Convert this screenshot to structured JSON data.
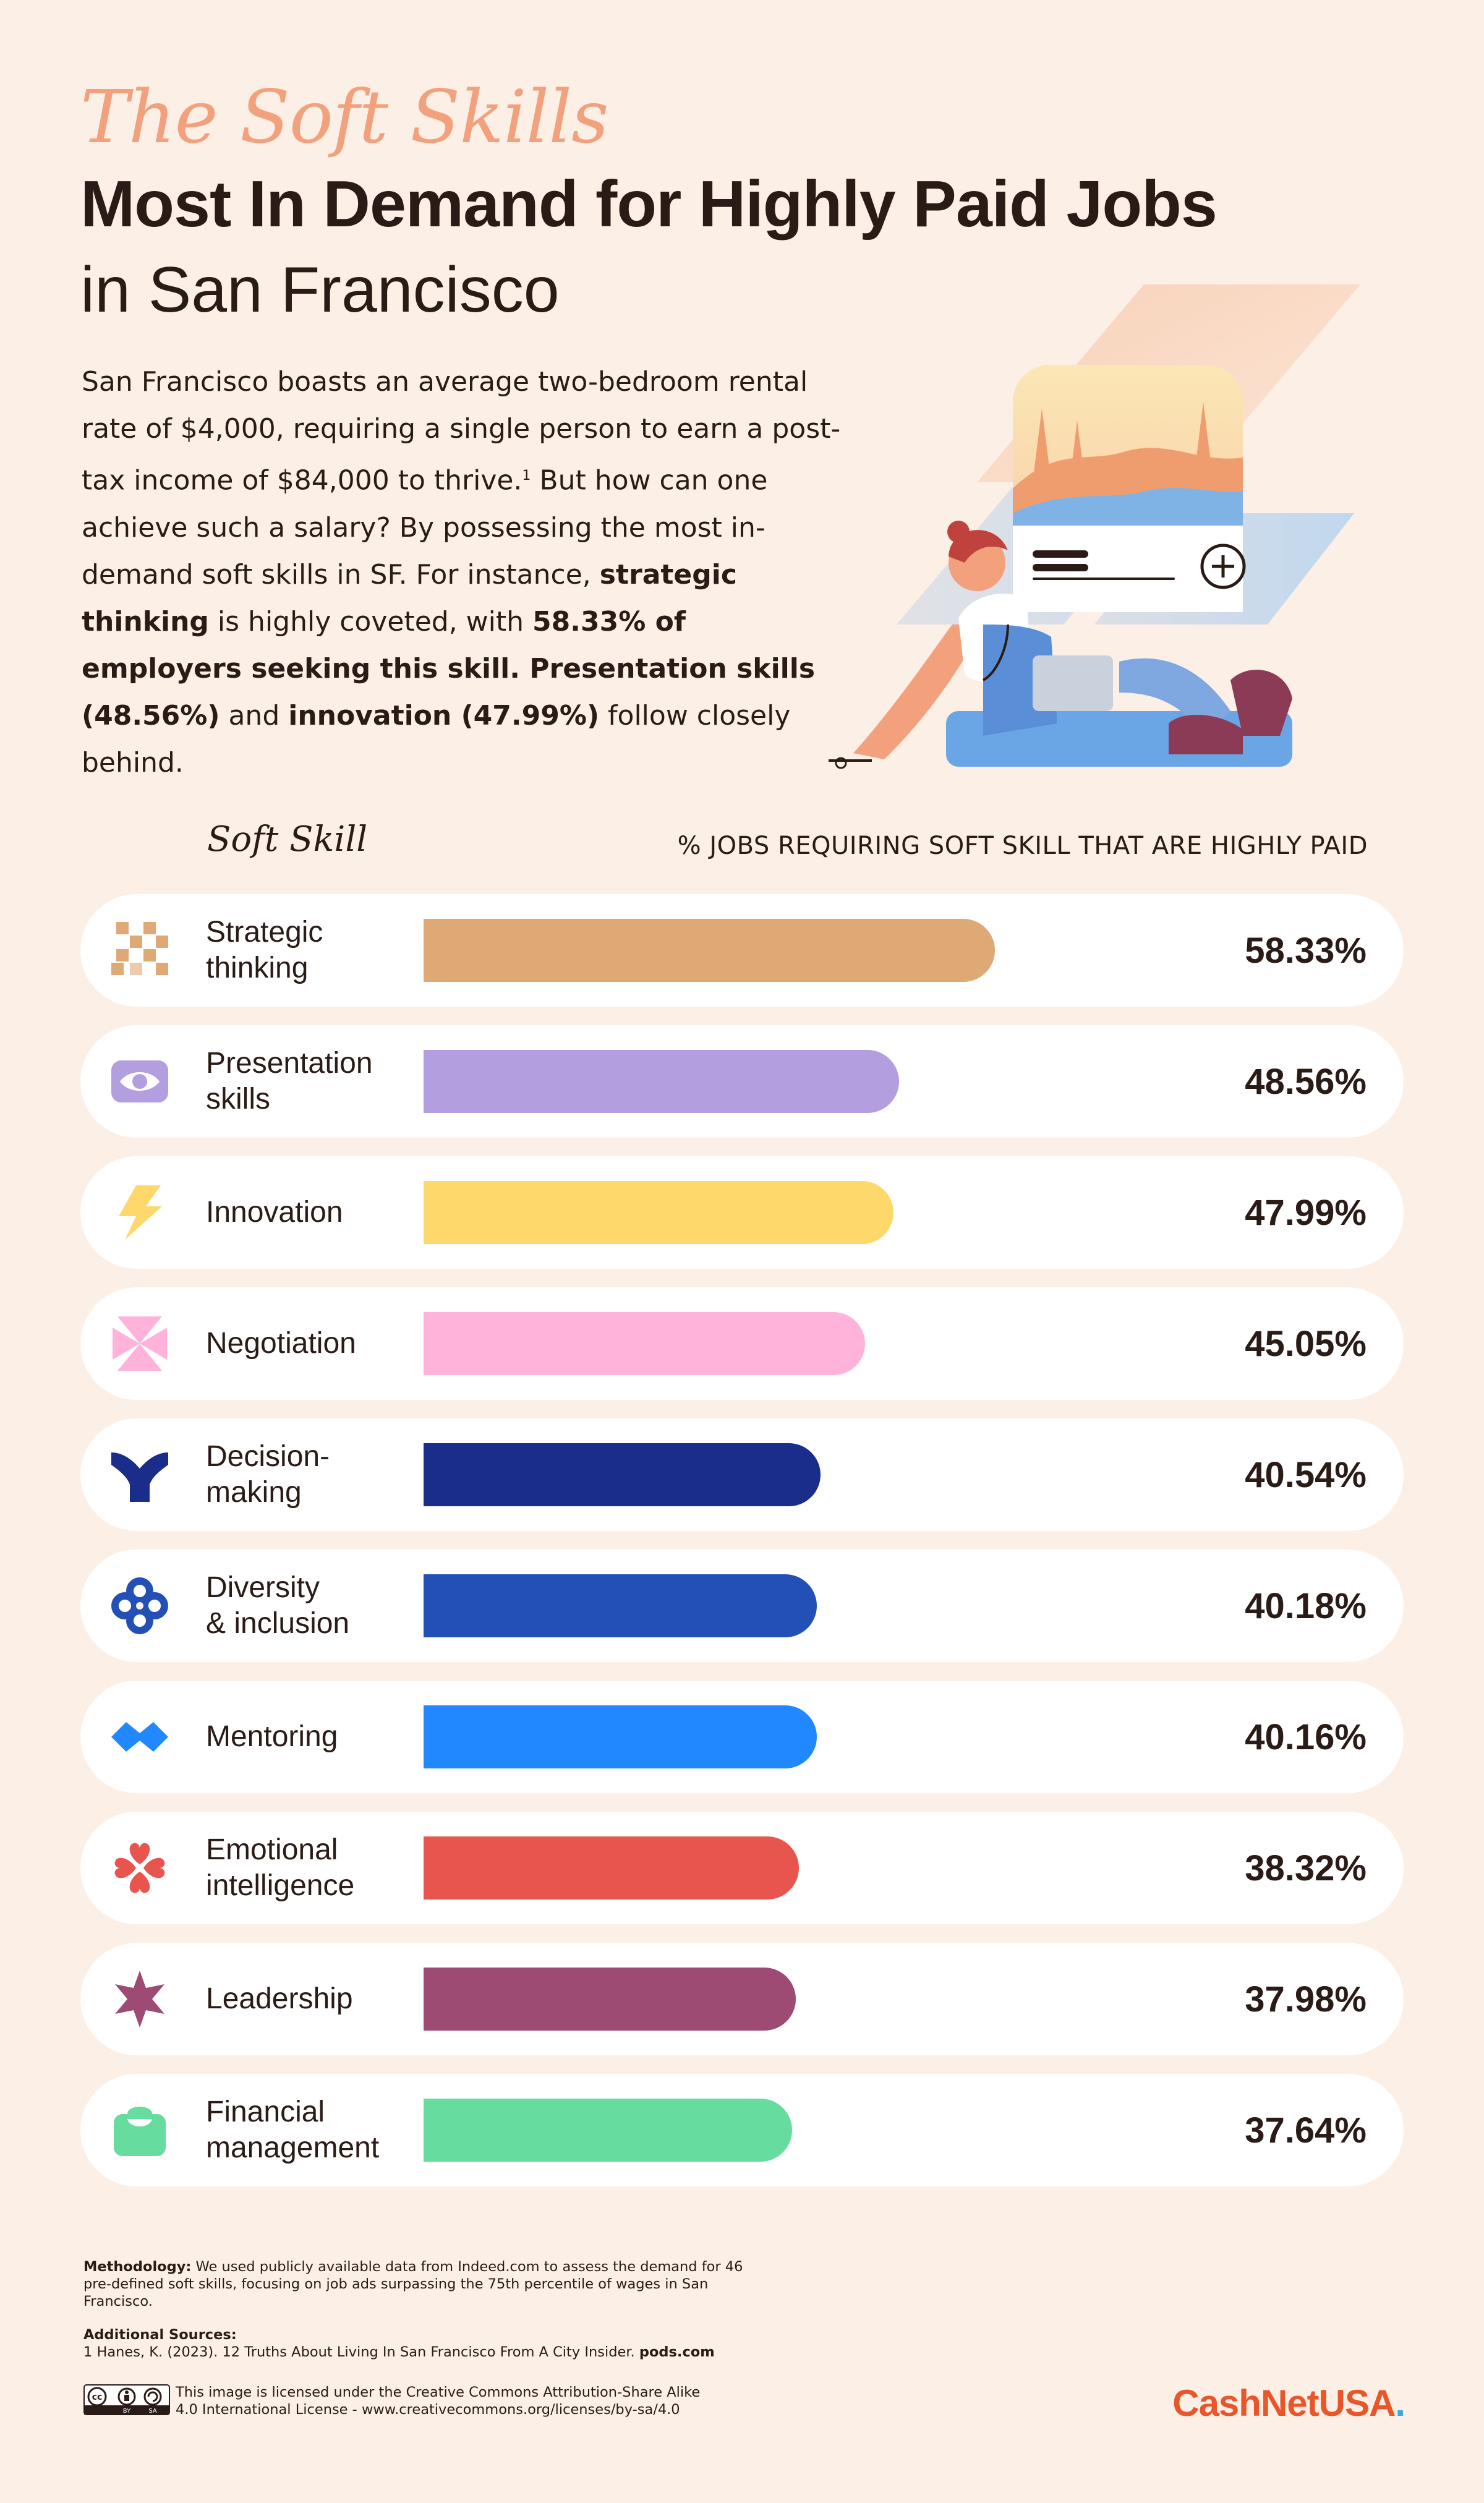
{
  "header": {
    "script_title": "The Soft Skills",
    "title": "Most In Demand for Highly Paid Jobs",
    "subtitle": "in San Francisco"
  },
  "intro": {
    "p1": "San Francisco boasts an average two-bedroom rental rate of $4,000, requiring a single person to earn a post-tax income of $84,000 to thrive.",
    "footnote_mark": "1",
    "p2": " But how can one achieve such a salary? By possessing the most in-demand soft skills in SF. For instance, ",
    "b1": "strategic thinking",
    "p3": " is highly coveted, with ",
    "b2": "58.33% of employers seeking this skill. Presentation skills (48.56%)",
    "p4": " and ",
    "b3": "innovation (47.99%)",
    "p5": " follow closely behind."
  },
  "chart_data": {
    "type": "bar",
    "orientation": "horizontal",
    "title": "The Soft Skills Most In Demand for Highly Paid Jobs in San Francisco",
    "xlabel": "% JOBS REQUIRING SOFT SKILL THAT ARE HIGHLY PAID",
    "ylabel": "Soft Skill",
    "categories": [
      "Strategic thinking",
      "Presentation skills",
      "Innovation",
      "Negotiation",
      "Decision-making",
      "Diversity & inclusion",
      "Mentoring",
      "Emotional intelligence",
      "Leadership",
      "Financial management"
    ],
    "values": [
      58.33,
      48.56,
      47.99,
      45.05,
      40.54,
      40.18,
      40.16,
      38.32,
      37.98,
      37.64
    ],
    "unit": "%",
    "xlim": [
      0,
      100
    ],
    "grid": false,
    "legend": "none",
    "items": [
      {
        "label_line1": "Strategic",
        "label_line2": "thinking",
        "value": 58.33,
        "value_label": "58.33%",
        "color": "#dea974",
        "icon": "checkerboard-icon"
      },
      {
        "label_line1": "Presentation",
        "label_line2": "skills",
        "value": 48.56,
        "value_label": "48.56%",
        "color": "#b39ee0",
        "icon": "eye-icon"
      },
      {
        "label_line1": "Innovation",
        "label_line2": "",
        "value": 47.99,
        "value_label": "47.99%",
        "color": "#ffd86b",
        "icon": "lightning-icon"
      },
      {
        "label_line1": "Negotiation",
        "label_line2": "",
        "value": 45.05,
        "value_label": "45.05%",
        "color": "#ffb3da",
        "icon": "pinwheel-icon"
      },
      {
        "label_line1": "Decision-",
        "label_line2": "making",
        "value": 40.54,
        "value_label": "40.54%",
        "color": "#1a2d8a",
        "icon": "y-shape-icon"
      },
      {
        "label_line1": "Diversity",
        "label_line2": "& inclusion",
        "value": 40.18,
        "value_label": "40.18%",
        "color": "#2350b6",
        "icon": "knot-icon"
      },
      {
        "label_line1": "Mentoring",
        "label_line2": "",
        "value": 40.16,
        "value_label": "40.16%",
        "color": "#2188ff",
        "icon": "double-diamond-icon"
      },
      {
        "label_line1": "Emotional",
        "label_line2": "intelligence",
        "value": 38.32,
        "value_label": "38.32%",
        "color": "#e8554f",
        "icon": "hearts-clover-icon"
      },
      {
        "label_line1": "Leadership",
        "label_line2": "",
        "value": 37.98,
        "value_label": "37.98%",
        "color": "#9d4b73",
        "icon": "star-icon"
      },
      {
        "label_line1": "Financial",
        "label_line2": "management",
        "value": 37.64,
        "value_label": "37.64%",
        "color": "#66dd9e",
        "icon": "wallet-icon"
      }
    ]
  },
  "columns": {
    "skill_header": "Soft Skill",
    "pct_header": "% JOBS REQUIRING SOFT SKILL THAT ARE HIGHLY PAID"
  },
  "footer": {
    "methodology_label": "Methodology:",
    "methodology_text": " We used publicly available data from Indeed.com to assess the demand for 46 pre-defined soft skills, focusing on job ads surpassing the 75th percentile of wages in San Francisco.",
    "sources_label": "Additional Sources:",
    "sources_text": "1 Hanes, K. (2023). 12 Truths About Living In San Francisco From A City Insider. ",
    "sources_site": "pods.com",
    "license_line1": "This image is licensed under the Creative Commons Attribution-Share Alike",
    "license_line2": "4.0 International License - www.creativecommons.org/licenses/by-sa/4.0",
    "cc_badge_text": "cc",
    "cc_badge_sub1": "BY",
    "cc_badge_sub2": "SA",
    "brand_main": "CashNet",
    "brand_accent": "USA",
    "brand_dot": "."
  },
  "colors": {
    "background": "#fcefe6",
    "accent_orange": "#f3a07d",
    "text_dark": "#2a1b16",
    "brand": "#e8562a"
  }
}
